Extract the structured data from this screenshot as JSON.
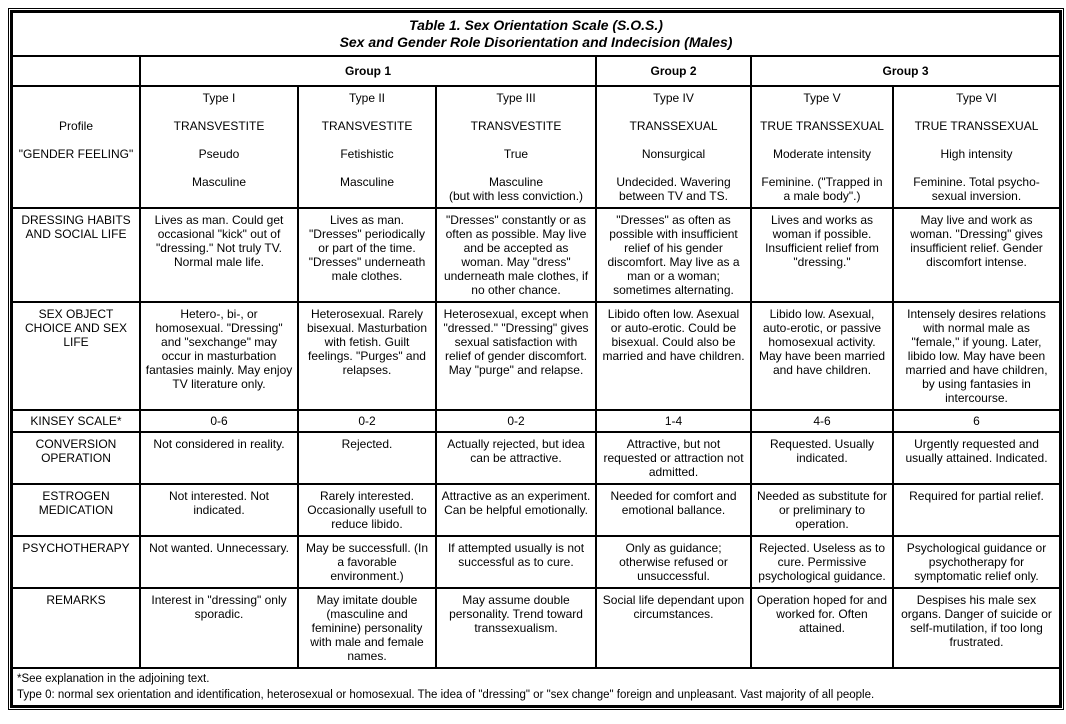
{
  "title": {
    "line1": "Table 1. Sex Orientation Scale (S.O.S.)",
    "line2": "Sex and Gender Role Disorientation and Indecision (Males)"
  },
  "groups": [
    "Group 1",
    "Group 2",
    "Group 3"
  ],
  "profile_labels": {
    "profile": "Profile",
    "gender_feeling": "\"GENDER FEELING\""
  },
  "types": [
    {
      "type": "Type I",
      "profile": "TRANSVESTITE",
      "subtype": "Pseudo",
      "gender_feeling": "Masculine"
    },
    {
      "type": "Type II",
      "profile": "TRANSVESTITE",
      "subtype": "Fetishistic",
      "gender_feeling": "Masculine"
    },
    {
      "type": "Type III",
      "profile": "TRANSVESTITE",
      "subtype": "True",
      "gender_feeling": "Masculine\n(but with less conviction.)"
    },
    {
      "type": "Type IV",
      "profile": "TRANSSEXUAL",
      "subtype": "Nonsurgical",
      "gender_feeling": "Undecided. Wavering\nbetween TV and TS."
    },
    {
      "type": "Type V",
      "profile": "TRUE TRANSSEXUAL",
      "subtype": "Moderate intensity",
      "gender_feeling": "Feminine. (\"Trapped in\na male body\".)"
    },
    {
      "type": "Type VI",
      "profile": "TRUE TRANSSEXUAL",
      "subtype": "High intensity",
      "gender_feeling": "Feminine. Total psycho-\nsexual inversion."
    }
  ],
  "rows": [
    {
      "label": "DRESSING HABITS AND SOCIAL LIFE",
      "cells": [
        "Lives as man. Could get occasional \"kick\" out of \"dressing.\" Not truly TV. Normal male life.",
        "Lives as man. \"Dresses\" periodically or part of the time. \"Dresses\" underneath male clothes.",
        "\"Dresses\" constantly or as often as possible. May live and be accepted as woman. May \"dress\" underneath male clothes, if no other chance.",
        "\"Dresses\" as often as possible with insufficient relief of his gender discomfort. May live as a man or a woman; sometimes alternating.",
        "Lives and works as woman if possible. Insufficient relief from \"dressing.\"",
        "May live and work as woman. \"Dressing\" gives insufficient relief. Gender discomfort intense."
      ]
    },
    {
      "label": "SEX OBJECT CHOICE AND SEX LIFE",
      "cells": [
        "Hetero-, bi-, or homosexual. \"Dressing\" and \"sexchange\" may occur in masturbation fantasies mainly. May enjoy TV literature only.",
        "Heterosexual. Rarely bisexual. Masturbation with fetish. Guilt feelings. \"Purges\" and relapses.",
        "Heterosexual, except when \"dressed.\" \"Dressing\" gives sexual satisfaction with relief of gender discomfort. May \"purge\" and relapse.",
        "Libido often low. Asexual or auto-erotic. Could be bisexual. Could also be married and have children.",
        "Libido low. Asexual, auto-erotic, or passive homosexual activity. May have been married and have children.",
        "Intensely desires relations with normal male as \"female,\" if young. Later, libido low. May have been married and have children, by using fantasies in intercourse."
      ]
    },
    {
      "label": "KINSEY SCALE*",
      "cells": [
        "0-6",
        "0-2",
        "0-2",
        "1-4",
        "4-6",
        "6"
      ]
    },
    {
      "label": "CONVERSION OPERATION",
      "cells": [
        "Not considered in reality.",
        "Rejected.",
        "Actually rejected, but idea can be attractive.",
        "Attractive, but not requested or attraction not admitted.",
        "Requested. Usually indicated.",
        "Urgently requested and usually attained. Indicated."
      ]
    },
    {
      "label": "ESTROGEN MEDICATION",
      "cells": [
        "Not interested. Not indicated.",
        "Rarely interested. Occasionally usefull to reduce libido.",
        "Attractive as an experiment. Can be helpful emotionally.",
        "Needed for comfort and emotional ballance.",
        "Needed as substitute for or preliminary to operation.",
        "Required for partial relief."
      ]
    },
    {
      "label": "PSYCHOTHERAPY",
      "cells": [
        "Not wanted. Unnecessary.",
        "May be successfull. (In a favorable environment.)",
        "If attempted usually is not successful as to cure.",
        "Only as guidance; otherwise refused or unsuccessful.",
        "Rejected. Useless as to cure. Permissive psychological guidance.",
        "Psychological guidance or psychotherapy for symptomatic relief only."
      ]
    },
    {
      "label": "REMARKS",
      "cells": [
        "Interest in \"dressing\" only sporadic.",
        "May imitate double (masculine and feminine) personality with male and female names.",
        "May assume double personality. Trend toward transsexualism.",
        "Social life dependant upon circumstances.",
        "Operation hoped for and worked for. Often attained.",
        "Despises his male sex organs. Danger of suicide or self-mutilation, if too long frustrated."
      ]
    }
  ],
  "footer": {
    "note1": "*See explanation in the adjoining text.",
    "note2": "Type 0: normal sex orientation and identification, heterosexual or homosexual. The idea of \"dressing\" or \"sex change\" foreign and unpleasant. Vast majority of all people."
  }
}
